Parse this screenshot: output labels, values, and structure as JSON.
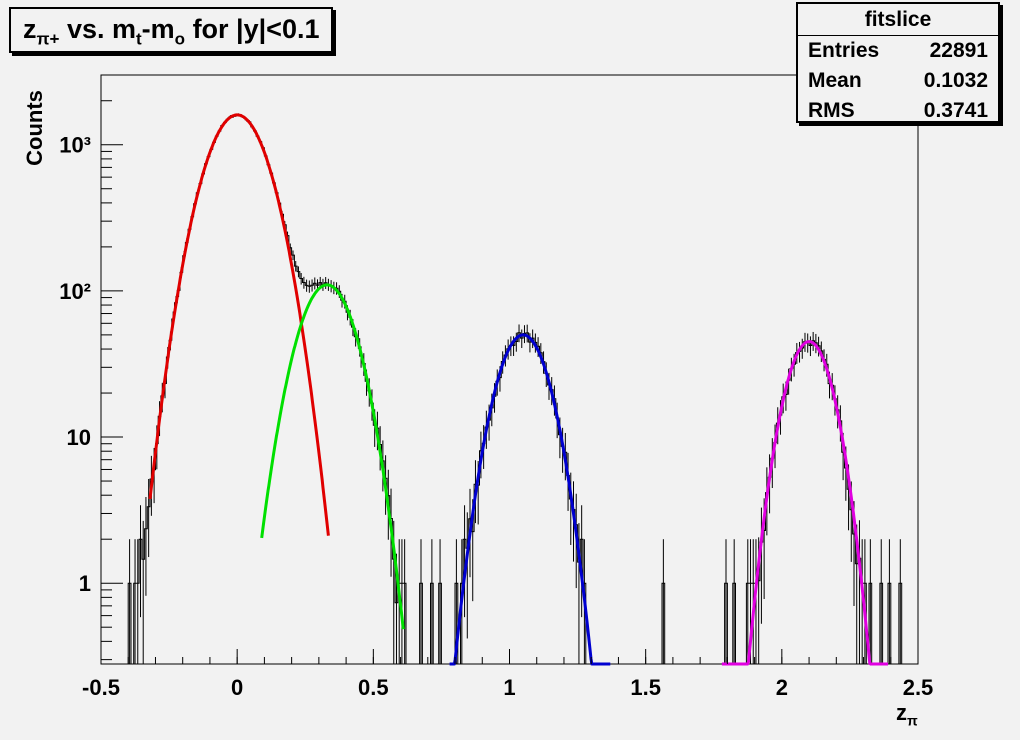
{
  "chart_data": {
    "type": "line",
    "title_main": "z",
    "title_sub": "π+",
    "title_rest": " vs. m",
    "title_sub2": "t",
    "title_rest2": "-m",
    "title_sub3": "o",
    "title_rest3": " for |y|<0.1",
    "xlabel_main": "z",
    "xlabel_sub": "π",
    "ylabel": "Counts",
    "xlim": [
      -0.5,
      2.5
    ],
    "ylim": [
      0.28,
      3000
    ],
    "yscale": "log",
    "x_ticks": [
      -0.5,
      0,
      0.5,
      1,
      1.5,
      2,
      2.5
    ],
    "x_tick_labels": [
      "-0.5",
      "0",
      "0.5",
      "1",
      "1.5",
      "2",
      "2.5"
    ],
    "y_ticks": [
      1,
      10,
      100,
      1000
    ],
    "y_tick_labels": [
      "1",
      "10",
      "10²",
      "10³"
    ],
    "stats": {
      "name": "fitslice",
      "rows": [
        {
          "label": "Entries",
          "value": "22891"
        },
        {
          "label": "Mean",
          "value": "0.1032"
        },
        {
          "label": "RMS",
          "value": "0.3741"
        }
      ]
    },
    "series": [
      {
        "color": "#e00000",
        "peak_x": 0.0,
        "peak_y": 1600,
        "sigma": 0.092,
        "x_range": [
          -0.32,
          0.335
        ]
      },
      {
        "color": "#00e000",
        "peak_x": 0.33,
        "peak_y": 110,
        "sigma": 0.085,
        "x_range": [
          0.09,
          0.61
        ]
      },
      {
        "color": "#0000d0",
        "peak_x": 1.05,
        "peak_y": 50,
        "sigma": 0.078,
        "x_range": [
          0.78,
          1.37
        ]
      },
      {
        "color": "#e000e0",
        "peak_x": 2.1,
        "peak_y": 45,
        "sigma": 0.07,
        "x_range": [
          1.78,
          2.39
        ]
      }
    ],
    "isolated_bins": [
      {
        "x": 0.67,
        "y": 1
      },
      {
        "x": 0.71,
        "y": 1
      },
      {
        "x": 0.74,
        "y": 1
      },
      {
        "x": 1.56,
        "y": 1
      },
      {
        "x": 1.79,
        "y": 1
      },
      {
        "x": 1.82,
        "y": 1
      },
      {
        "x": 2.36,
        "y": 1
      },
      {
        "x": 2.39,
        "y": 1
      },
      {
        "x": 2.43,
        "y": 1
      }
    ]
  }
}
